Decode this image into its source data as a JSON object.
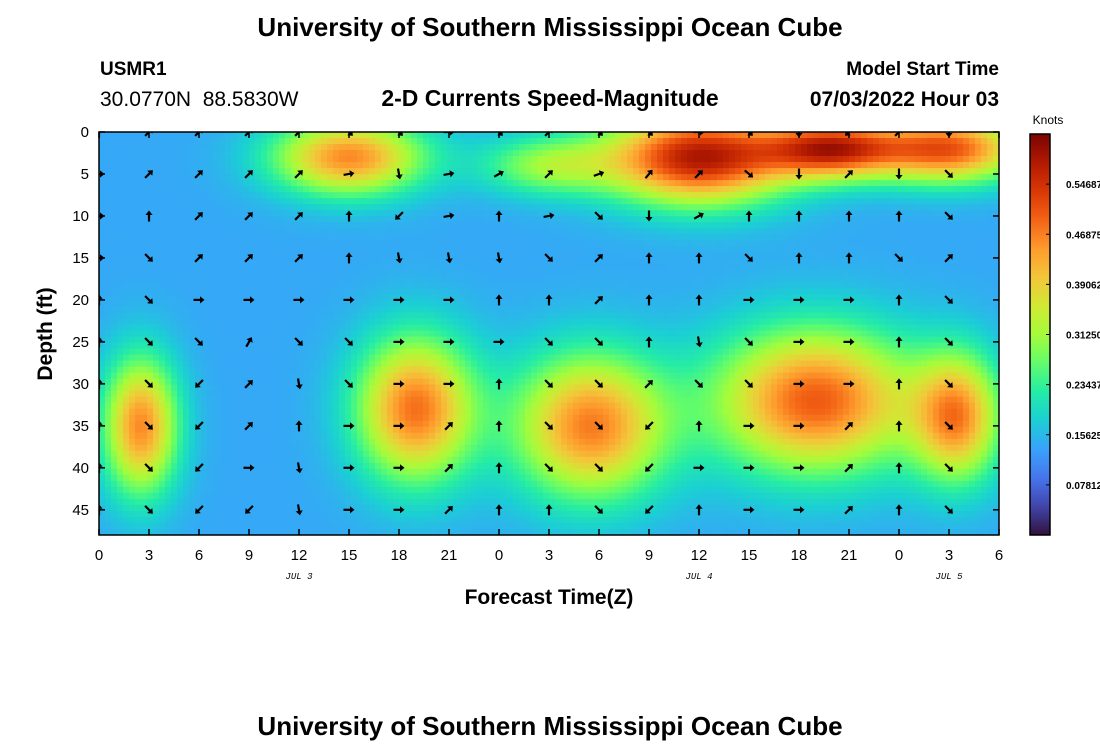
{
  "page": {
    "title": "University of Southern Mississippi Ocean Cube",
    "title_bottom": "University of Southern Mississippi Ocean Cube"
  },
  "station": {
    "id": "USMR1",
    "coords": "30.0770N  88.5830W"
  },
  "model": {
    "label": "Model Start Time",
    "value": "07/03/2022 Hour 03"
  },
  "chart_data": {
    "type": "heatmap",
    "title": "2-D Currents Speed-Magnitude",
    "xlabel": "Forecast Time(Z)",
    "ylabel": "Depth (ft)",
    "x_range_hours": [
      0,
      54
    ],
    "x_tick_hours": [
      0,
      3,
      6,
      9,
      12,
      15,
      18,
      21,
      24,
      27,
      30,
      33,
      36,
      39,
      42,
      45,
      48,
      51,
      54
    ],
    "x_tick_labels": [
      "0",
      "3",
      "6",
      "9",
      "12",
      "15",
      "18",
      "21",
      "0",
      "3",
      "6",
      "9",
      "12",
      "15",
      "18",
      "21",
      "0",
      "3",
      "6"
    ],
    "date_labels": [
      {
        "text": "JUL 3",
        "hour": 12
      },
      {
        "text": "JUL 4",
        "hour": 36
      },
      {
        "text": "JUL 5",
        "hour": 51
      }
    ],
    "ylim": [
      0,
      48
    ],
    "y_ticks": [
      0,
      5,
      10,
      15,
      20,
      25,
      30,
      35,
      40,
      45
    ],
    "y_tick_labels": [
      "0",
      "5",
      "10",
      "15",
      "20",
      "25",
      "30",
      "35",
      "40",
      "45"
    ],
    "colorbar": {
      "label": "Knots",
      "min": 0.0,
      "max": 0.625,
      "ticks": [
        0.07812,
        0.15625,
        0.23437,
        0.3125,
        0.39062,
        0.46875,
        0.54687
      ],
      "tick_labels": [
        "0.07812",
        "0.15625",
        "0.23437",
        "0.31250",
        "0.39062",
        "0.46875",
        "0.54687"
      ],
      "colors": [
        "#30123b",
        "#4145ab",
        "#4675ed",
        "#39a2fc",
        "#1bcfd4",
        "#24eca6",
        "#61fc6c",
        "#a4fc3b",
        "#d1e834",
        "#f3c63a",
        "#fe9b2d",
        "#f36315",
        "#d93806",
        "#b11901",
        "#7a0402"
      ]
    },
    "speed_blobs": [
      {
        "hour": 2.5,
        "depth": 35,
        "sx": 2.2,
        "sy": 8,
        "value": 0.46
      },
      {
        "hour": 15,
        "depth": 3,
        "sx": 4.5,
        "sy": 4.5,
        "value": 0.46
      },
      {
        "hour": 19,
        "depth": 33,
        "sx": 3.5,
        "sy": 8.5,
        "value": 0.48
      },
      {
        "hour": 29.5,
        "depth": 35,
        "sx": 4.5,
        "sy": 8.5,
        "value": 0.47
      },
      {
        "hour": 36,
        "depth": 3,
        "sx": 5.5,
        "sy": 5.5,
        "value": 0.58
      },
      {
        "hour": 44,
        "depth": 2,
        "sx": 4,
        "sy": 3.5,
        "value": 0.52
      },
      {
        "hour": 51,
        "depth": 2,
        "sx": 4.5,
        "sy": 4,
        "value": 0.5
      },
      {
        "hour": 43,
        "depth": 32,
        "sx": 6,
        "sy": 8.5,
        "value": 0.5
      },
      {
        "hour": 51.5,
        "depth": 34,
        "sx": 2.6,
        "sy": 7.5,
        "value": 0.44
      },
      {
        "hour": 27,
        "depth": 4,
        "sx": 4,
        "sy": 3.5,
        "value": 0.3
      }
    ],
    "speed_background": 0.14,
    "vectors": {
      "hours": [
        0,
        3,
        6,
        9,
        12,
        15,
        18,
        21,
        24,
        27,
        30,
        33,
        36,
        39,
        42,
        45,
        48,
        51
      ],
      "depths": [
        0,
        5,
        10,
        15,
        20,
        25,
        30,
        35,
        40,
        45
      ],
      "directions_deg": [
        [
          0,
          45,
          45,
          45,
          45,
          135,
          135,
          90,
          135,
          45,
          135,
          135,
          90,
          135,
          180,
          225,
          45,
          180
        ],
        [
          90,
          45,
          45,
          45,
          45,
          80,
          170,
          80,
          60,
          45,
          70,
          40,
          45,
          130,
          180,
          45,
          180,
          135
        ],
        [
          90,
          0,
          45,
          45,
          45,
          0,
          225,
          80,
          0,
          80,
          135,
          180,
          60,
          0,
          0,
          0,
          0,
          135
        ],
        [
          90,
          135,
          45,
          45,
          45,
          0,
          170,
          170,
          170,
          135,
          45,
          0,
          0,
          135,
          0,
          0,
          135,
          45
        ],
        [
          0,
          135,
          90,
          90,
          90,
          90,
          90,
          90,
          0,
          0,
          45,
          0,
          0,
          90,
          90,
          90,
          0,
          135
        ],
        [
          0,
          135,
          135,
          30,
          135,
          135,
          90,
          90,
          90,
          135,
          135,
          0,
          170,
          135,
          90,
          90,
          0,
          135
        ],
        [
          0,
          135,
          225,
          45,
          170,
          135,
          90,
          90,
          0,
          135,
          135,
          45,
          135,
          135,
          90,
          90,
          0,
          135
        ],
        [
          0,
          135,
          225,
          45,
          0,
          90,
          90,
          45,
          0,
          135,
          135,
          225,
          0,
          90,
          90,
          45,
          0,
          135
        ],
        [
          0,
          135,
          225,
          90,
          170,
          90,
          90,
          45,
          0,
          135,
          135,
          225,
          90,
          90,
          90,
          45,
          0,
          135
        ],
        [
          0,
          135,
          225,
          225,
          170,
          90,
          90,
          45,
          0,
          0,
          135,
          225,
          0,
          90,
          90,
          45,
          0,
          135
        ]
      ]
    }
  }
}
